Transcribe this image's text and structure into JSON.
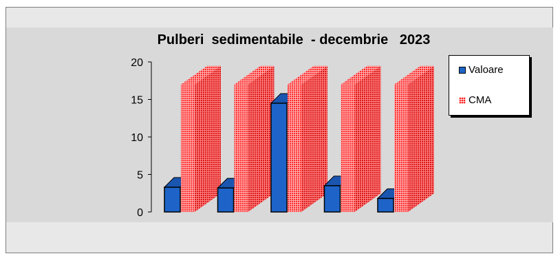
{
  "chart_data": {
    "type": "bar",
    "title": "Pulberi  sedimentabile  - decembrie   2023",
    "categories": [
      "",
      "",
      "",
      "",
      ""
    ],
    "series": [
      {
        "name": "Valoare",
        "values": [
          3.3,
          3.2,
          14.5,
          3.5,
          1.8
        ]
      },
      {
        "name": "CMA",
        "values": [
          17,
          17,
          17,
          17,
          17
        ]
      }
    ],
    "ylim": [
      0,
      20
    ],
    "yticks": [
      "0",
      "5",
      "10",
      "15",
      "20"
    ],
    "legend": "right",
    "grid": false,
    "colors": {
      "valoare": "#1e64c8",
      "valoare_top": "#1a56b0",
      "cma": "#ff2a2a",
      "plot_bg": "#d9d9d9",
      "frame_bg": "#e8e8e8"
    }
  }
}
